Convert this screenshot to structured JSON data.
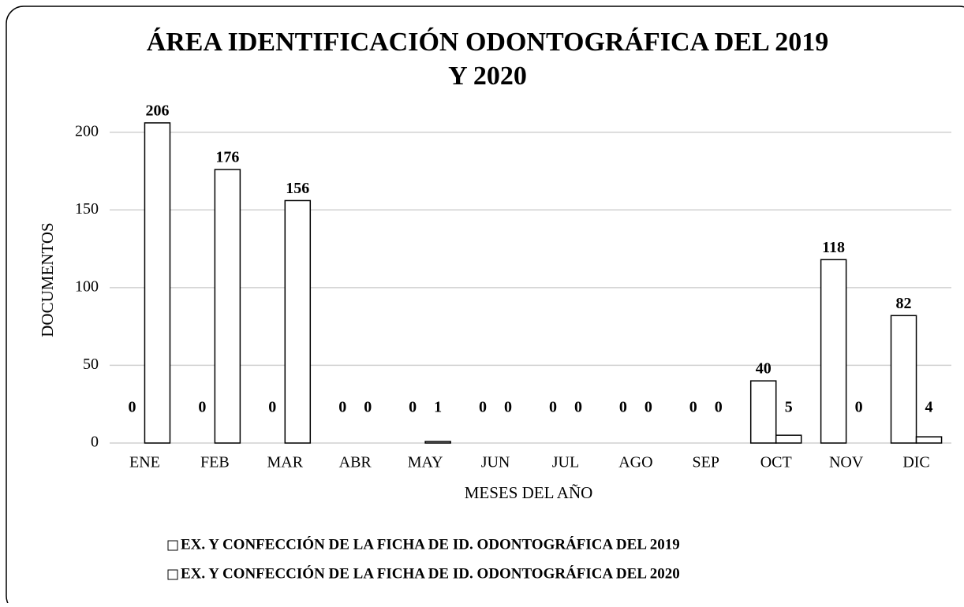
{
  "chart_data": {
    "type": "bar",
    "title": "ÁREA IDENTIFICACIÓN ODONTOGRÁFICA DEL 2019",
    "subtitle": "Y  2020",
    "x_label": "MESES DEL AÑO",
    "y_label": "DOCUMENTOS",
    "categories": [
      "ENE",
      "FEB",
      "MAR",
      "ABR",
      "MAY",
      "JUN",
      "JUL",
      "AGO",
      "SEP",
      "OCT",
      "NOV",
      "DIC"
    ],
    "series": [
      {
        "name": "EX. Y CONFECCIÓN DE LA FICHA DE ID. ODONTOGRÁFICA DEL 2019",
        "color": "#ffffff",
        "values": [
          0,
          0,
          0,
          0,
          0,
          0,
          0,
          0,
          0,
          40,
          118,
          82
        ]
      },
      {
        "name": "EX. Y CONFECCIÓN DE LA FICHA DE ID. ODONTOGRÁFICA DEL 2020",
        "color": "#ffffff",
        "values": [
          206,
          176,
          156,
          0,
          1,
          0,
          0,
          0,
          0,
          5,
          0,
          4
        ]
      }
    ],
    "ylim": [
      0,
      210
    ],
    "yticks": [
      0,
      50,
      100,
      150,
      200
    ],
    "grid": true,
    "legend": "bottom"
  }
}
